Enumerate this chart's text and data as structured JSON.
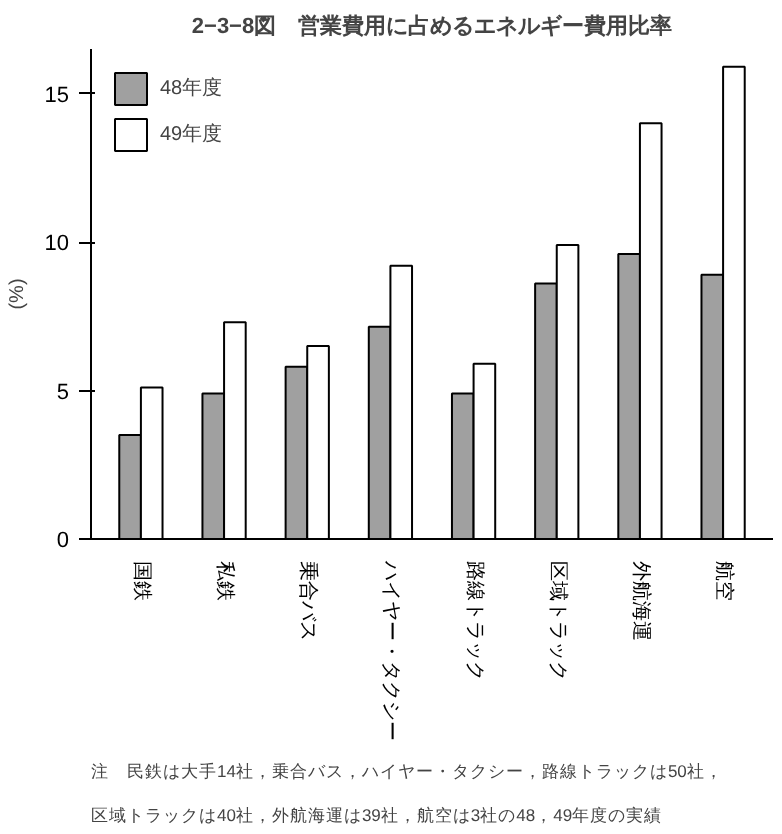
{
  "chart_data": {
    "type": "bar",
    "title": "2−3−8図　営業費用に占めるエネルギー費用比率",
    "ylabel": "(%)",
    "categories": [
      "国鉄",
      "私鉄",
      "乗合バス",
      "ハイヤー・タクシー",
      "路線トラック",
      "区域トラック",
      "外航海運",
      "航空"
    ],
    "series": [
      {
        "name": "48年度",
        "color": "#a0a0a0",
        "values": [
          3.5,
          4.9,
          5.8,
          7.15,
          4.9,
          8.6,
          9.6,
          8.9
        ]
      },
      {
        "name": "49年度",
        "color": "#ffffff",
        "values": [
          5.1,
          7.3,
          6.5,
          9.2,
          5.9,
          9.9,
          14.0,
          15.9
        ]
      }
    ],
    "ylim": [
      0,
      16.5
    ],
    "yticks": [
      0,
      5,
      10,
      15
    ],
    "grid": false,
    "legend": "top left",
    "annotations": [
      "注　民鉄は大手14社，乗合バス，ハイヤー・タクシー，路線トラックは50社，",
      "区域トラックは40社，外航海運は39社，航空は3社の48，49年度の実績"
    ]
  }
}
